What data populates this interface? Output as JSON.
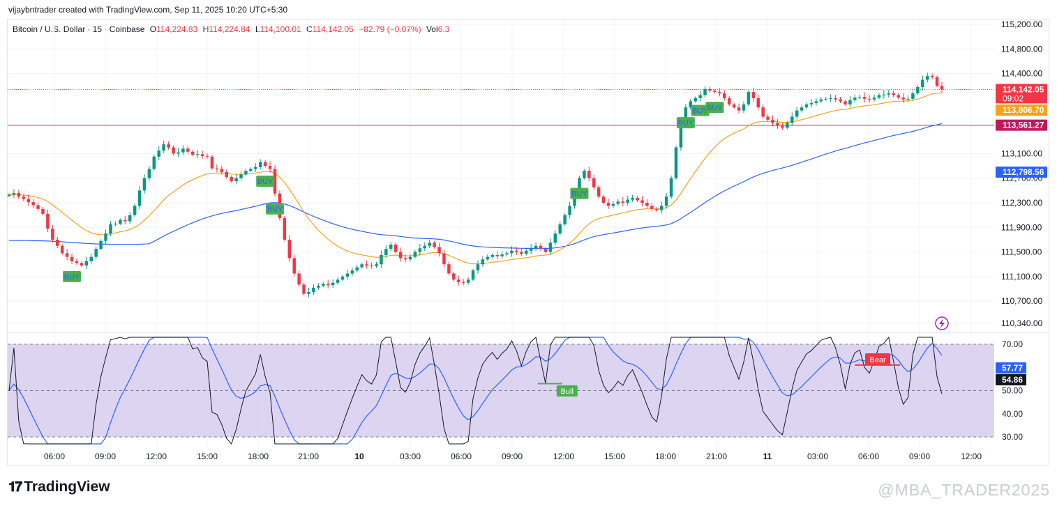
{
  "header": {
    "created_by": "vijaybntrader created with TradingView.com, Sep 11, 2025 10:20 UTC+5:30"
  },
  "legend": {
    "symbol": "Bitcoin / U.S. Dollar · 15 · Coinbase",
    "o_label": "O",
    "o_value": "114,224.83",
    "h_label": "H",
    "h_value": "114,224.84",
    "l_label": "L",
    "l_value": "114,100.01",
    "c_label": "C",
    "c_value": "114,142.05",
    "change": "−82.79 (−0.07%)",
    "vol_label": "Vol",
    "vol_value": "6.3"
  },
  "colors": {
    "up": "#089981",
    "down": "#f23645",
    "ema_fast": "#f7a21b",
    "ema_slow": "#2962ff",
    "rsi": "#131722",
    "rsi_ma": "#2962ff",
    "rsi_band": "#d6cdee",
    "signal": "#4caf50",
    "hline": "#c2185b"
  },
  "footer": {
    "brand": "TradingView",
    "watermark": "@MBA_TRADER2025"
  },
  "chart_data": {
    "type": "candlestick",
    "price_axis": {
      "ticks": [
        115200,
        114800,
        114400,
        113100,
        112700,
        112300,
        111900,
        111500,
        111100,
        110700,
        110340
      ],
      "tick_labels": [
        "115,200.00",
        "114,800.00",
        "114,400.00",
        "113,100.00",
        "112,700.00",
        "112,300.00",
        "111,900.00",
        "111,500.00",
        "111,100.00",
        "110,700.00",
        "110,340.00"
      ]
    },
    "time_axis": {
      "labels": [
        "06:00",
        "09:00",
        "12:00",
        "15:00",
        "18:00",
        "21:00",
        "10",
        "03:00",
        "06:00",
        "09:00",
        "12:00",
        "15:00",
        "18:00",
        "21:00",
        "11",
        "03:00",
        "06:00",
        "09:00",
        "12:00"
      ]
    },
    "price_badges": [
      {
        "label": "114,142.05",
        "sub": "09:02",
        "value": 114142.05,
        "color": "#f23645"
      },
      {
        "label": "113,806.70",
        "value": 113806.7,
        "color": "#f7a21b"
      },
      {
        "label": "113,561.27",
        "value": 113561.27,
        "color": "#c2185b"
      },
      {
        "label": "112,798.56",
        "value": 112798.56,
        "color": "#2962ff"
      }
    ],
    "horizontal_line": 113561.27,
    "closes": [
      112430,
      112460,
      112400,
      112360,
      112310,
      112260,
      112200,
      112120,
      111880,
      111700,
      111600,
      111480,
      111420,
      111350,
      111320,
      111280,
      111350,
      111420,
      111550,
      111680,
      111800,
      111950,
      111960,
      112020,
      112000,
      112100,
      112250,
      112500,
      112700,
      112850,
      113050,
      113150,
      113250,
      113200,
      113100,
      113120,
      113180,
      113130,
      113080,
      113090,
      113060,
      113050,
      112860,
      112850,
      112800,
      112720,
      112650,
      112700,
      112760,
      112820,
      112850,
      112880,
      112960,
      112900,
      112850,
      112450,
      112050,
      111700,
      111400,
      111150,
      110970,
      110820,
      110850,
      110920,
      110950,
      110980,
      110960,
      111000,
      111050,
      111100,
      111150,
      111200,
      111250,
      111300,
      111280,
      111270,
      111300,
      111450,
      111550,
      111620,
      111500,
      111400,
      111380,
      111420,
      111500,
      111560,
      111600,
      111650,
      111580,
      111480,
      111300,
      111150,
      111050,
      111010,
      111000,
      111050,
      111200,
      111300,
      111380,
      111420,
      111450,
      111430,
      111460,
      111480,
      111520,
      111500,
      111470,
      111520,
      111560,
      111600,
      111550,
      111500,
      111650,
      111800,
      111950,
      112100,
      112250,
      112450,
      112700,
      112820,
      112700,
      112550,
      112400,
      112300,
      112250,
      112280,
      112320,
      112300,
      112350,
      112380,
      112340,
      112300,
      112250,
      112200,
      112180,
      112250,
      112400,
      112700,
      113200,
      113600,
      113850,
      113950,
      114000,
      114050,
      114150,
      114120,
      114100,
      114080,
      114000,
      113900,
      113850,
      113800,
      113900,
      114100,
      114000,
      113850,
      113700,
      113650,
      113600,
      113550,
      113520,
      113600,
      113700,
      113800,
      113850,
      113900,
      113920,
      113950,
      113980,
      113990,
      114000,
      113980,
      113950,
      113900,
      113970,
      114010,
      114020,
      113990,
      113980,
      114010,
      114050,
      114060,
      114080,
      114050,
      114010,
      113980,
      113990,
      114080,
      114180,
      114300,
      114360,
      114340,
      114200,
      114142
    ],
    "ema_fast_label": "113,806.70",
    "ema_slow_label": "112,798.56",
    "signals": [
      {
        "label": "BUY",
        "index": 13,
        "type": "buy"
      },
      {
        "label": "BUY",
        "index": 53,
        "type": "buy"
      },
      {
        "label": "BUY",
        "index": 55,
        "type": "buy"
      },
      {
        "label": "BUY",
        "index": 118,
        "type": "buy"
      },
      {
        "label": "BUY",
        "index": 140,
        "type": "buy"
      },
      {
        "label": "BUY",
        "index": 143,
        "type": "buy"
      },
      {
        "label": "BUY",
        "index": 146,
        "type": "buy"
      }
    ],
    "rsi": {
      "ticks": [
        70,
        50,
        40,
        30
      ],
      "tick_labels": [
        "70.00",
        "50.00",
        "40.00",
        "30.00"
      ],
      "upper": 70,
      "middle": 50,
      "lower": 30,
      "value_label": "54.86",
      "ma_label": "57.77",
      "bull_label": "Bull",
      "bear_label": "Bear"
    }
  }
}
